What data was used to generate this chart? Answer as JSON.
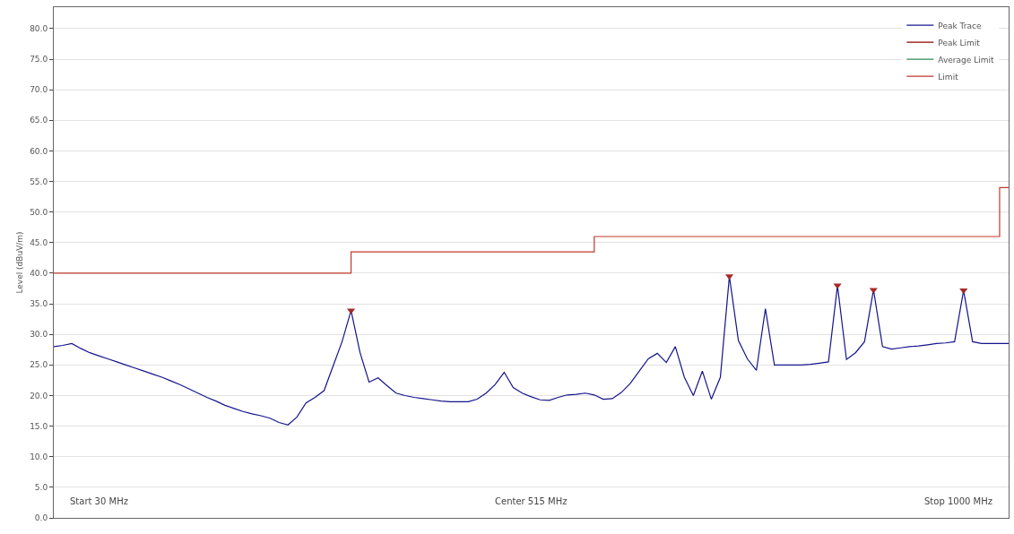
{
  "chart_data": {
    "type": "line",
    "ylabel": "Level (dBuV/m)",
    "categories": [
      null,
      null,
      null,
      null,
      null,
      null,
      null,
      null,
      null,
      null,
      null,
      null,
      null,
      null,
      null,
      null,
      null,
      null,
      null,
      null,
      null,
      null,
      null,
      null,
      null,
      null,
      null,
      null,
      null,
      null,
      null,
      null,
      null,
      null,
      null,
      null,
      null,
      null,
      null,
      null,
      null,
      null,
      null,
      null,
      null,
      null,
      null,
      null,
      null,
      null,
      null,
      null,
      null,
      null,
      null,
      null,
      null,
      null,
      null,
      null,
      null,
      null,
      null,
      null,
      null,
      null,
      null,
      null,
      null,
      null,
      null,
      null,
      null,
      null,
      null,
      null,
      null,
      null,
      null,
      null,
      null,
      null,
      null,
      null,
      null,
      null,
      null,
      null,
      null,
      null,
      null,
      null,
      null,
      null,
      null,
      null,
      null,
      null,
      null,
      null,
      null,
      null,
      null,
      null,
      null,
      null,
      null
    ],
    "ylim": [
      0,
      83.5
    ],
    "yticks": [
      {
        "value": 0,
        "label": "0.0"
      },
      {
        "value": 5,
        "label": "5.0"
      },
      {
        "value": 10,
        "label": "10.0"
      },
      {
        "value": 15,
        "label": "15.0"
      },
      {
        "value": 20,
        "label": "20.0"
      },
      {
        "value": 25,
        "label": "25.0"
      },
      {
        "value": 30,
        "label": "30.0"
      },
      {
        "value": 35,
        "label": "35.0"
      },
      {
        "value": 40,
        "label": "40.0"
      },
      {
        "value": 45,
        "label": "45.0"
      },
      {
        "value": 50,
        "label": "50.0"
      },
      {
        "value": 55,
        "label": "55.0"
      },
      {
        "value": 60,
        "label": "60.0"
      },
      {
        "value": 65,
        "label": "65.0"
      },
      {
        "value": 70,
        "label": "70.0"
      },
      {
        "value": 75,
        "label": "75.0"
      },
      {
        "value": 80,
        "label": "80.0"
      }
    ],
    "tick_labels": "y",
    "grid": "y",
    "legend": "top right",
    "line_style": "solid",
    "marker": "none",
    "series": [
      {
        "name": "Peak Trace",
        "color": "#14148c",
        "values": [
          28,
          28.2,
          28.5,
          27.7,
          27,
          26.5,
          26,
          25.5,
          25,
          24.5,
          24,
          23.5,
          23,
          22.4,
          21.8,
          21.1,
          20.4,
          19.7,
          19.1,
          18.4,
          17.9,
          17.4,
          17,
          16.7,
          16.3,
          15.6,
          15.2,
          16.5,
          18.8,
          19.7,
          20.8,
          24.8,
          28.8,
          33.9,
          27,
          22.2,
          22.9,
          21.6,
          20.4,
          20,
          19.7,
          19.5,
          19.3,
          19.1,
          19,
          19,
          19,
          19.4,
          20.4,
          21.8,
          23.8,
          21.3,
          20.4,
          19.8,
          19.3,
          19.2,
          19.7,
          20.1,
          20.2,
          20.4,
          20.1,
          19.4,
          19.5,
          20.5,
          22,
          24,
          26,
          26.9,
          25.4,
          28,
          23,
          20,
          24,
          19.4,
          23,
          39.5,
          29,
          26,
          24.1,
          34.2,
          25,
          25,
          25,
          25,
          25.1,
          25.3,
          25.5,
          38,
          25.9,
          27,
          28.8,
          37.3,
          28,
          27.6,
          27.8,
          28,
          28.1,
          28.3,
          28.5,
          28.6,
          28.8,
          37.2,
          28.8,
          28.5,
          28.5,
          28.5,
          28.5
        ]
      },
      {
        "name": "Peak Limit",
        "color": "#8b0000",
        "values": [
          null,
          null,
          null,
          null,
          null,
          null,
          null,
          null,
          null,
          null,
          null,
          null,
          null,
          null,
          null,
          null,
          null,
          null,
          null,
          null,
          null,
          null,
          null,
          null,
          null,
          null,
          null,
          null,
          null,
          null,
          null,
          null,
          null,
          null,
          null,
          null,
          null,
          null,
          null,
          null,
          null,
          null,
          null,
          null,
          null,
          null,
          null,
          null,
          null,
          null,
          null,
          null,
          null,
          null,
          null,
          null,
          null,
          null,
          null,
          null,
          null,
          null,
          null,
          null,
          null,
          null,
          null,
          null,
          null,
          null,
          null,
          null,
          null,
          null,
          null,
          null,
          null,
          null,
          null,
          null,
          null,
          null,
          null,
          null,
          null,
          null,
          null,
          null,
          null,
          null,
          null,
          null,
          null,
          null,
          null,
          null,
          null,
          null,
          null,
          null,
          null,
          null,
          null,
          null,
          null,
          null,
          null
        ]
      },
      {
        "name": "Average Limit",
        "color": "#2e8b57",
        "values": [
          null,
          null,
          null,
          null,
          null,
          null,
          null,
          null,
          null,
          null,
          null,
          null,
          null,
          null,
          null,
          null,
          null,
          null,
          null,
          null,
          null,
          null,
          null,
          null,
          null,
          null,
          null,
          null,
          null,
          null,
          null,
          null,
          null,
          null,
          null,
          null,
          null,
          null,
          null,
          null,
          null,
          null,
          null,
          null,
          null,
          null,
          null,
          null,
          null,
          null,
          null,
          null,
          null,
          null,
          null,
          null,
          null,
          null,
          null,
          null,
          null,
          null,
          null,
          null,
          null,
          null,
          null,
          null,
          null,
          null,
          null,
          null,
          null,
          null,
          null,
          null,
          null,
          null,
          null,
          null,
          null,
          null,
          null,
          null,
          null,
          null,
          null,
          null,
          null,
          null,
          null,
          null,
          null,
          null,
          null,
          null,
          null,
          null,
          null,
          null,
          null,
          null,
          null,
          null,
          null,
          null,
          null
        ]
      },
      {
        "name": "Limit",
        "color": "#c0392b",
        "type": "step",
        "values": [
          40,
          40,
          40,
          40,
          40,
          40,
          40,
          40,
          40,
          40,
          40,
          40,
          40,
          40,
          40,
          40,
          40,
          40,
          40,
          40,
          40,
          40,
          40,
          40,
          40,
          40,
          40,
          40,
          40,
          40,
          40,
          40,
          40,
          43.5,
          43.5,
          43.5,
          43.5,
          43.5,
          43.5,
          43.5,
          43.5,
          43.5,
          43.5,
          43.5,
          43.5,
          43.5,
          43.5,
          43.5,
          43.5,
          43.5,
          43.5,
          43.5,
          43.5,
          43.5,
          43.5,
          43.5,
          43.5,
          43.5,
          43.5,
          43.5,
          46,
          46,
          46,
          46,
          46,
          46,
          46,
          46,
          46,
          46,
          46,
          46,
          46,
          46,
          46,
          46,
          46,
          46,
          46,
          46,
          46,
          46,
          46,
          46,
          46,
          46,
          46,
          46,
          46,
          46,
          46,
          46,
          46,
          46,
          46,
          46,
          46,
          46,
          46,
          46,
          46,
          46,
          46,
          46,
          46,
          54,
          54
        ]
      },
      {
        "color": "#a52a2a",
        "type": "scatter",
        "marker": "triangle",
        "values": [
          null,
          null,
          null,
          null,
          null,
          null,
          null,
          null,
          null,
          null,
          null,
          null,
          null,
          null,
          null,
          null,
          null,
          null,
          null,
          null,
          null,
          null,
          null,
          null,
          null,
          null,
          null,
          null,
          null,
          null,
          null,
          null,
          null,
          33.9,
          null,
          null,
          null,
          null,
          null,
          null,
          null,
          null,
          null,
          null,
          null,
          null,
          null,
          null,
          null,
          null,
          null,
          null,
          null,
          null,
          null,
          null,
          null,
          null,
          null,
          null,
          null,
          null,
          null,
          null,
          null,
          null,
          null,
          null,
          null,
          null,
          null,
          null,
          null,
          null,
          null,
          39.5,
          null,
          null,
          null,
          null,
          null,
          null,
          null,
          null,
          null,
          null,
          null,
          38,
          null,
          null,
          null,
          37.3,
          null,
          null,
          null,
          null,
          null,
          null,
          null,
          null,
          null,
          37.2,
          null,
          null,
          null,
          null,
          null
        ]
      }
    ],
    "annotations": [
      "Start 30 MHz",
      "Center 515 MHz",
      "Stop 1000 MHz"
    ]
  }
}
